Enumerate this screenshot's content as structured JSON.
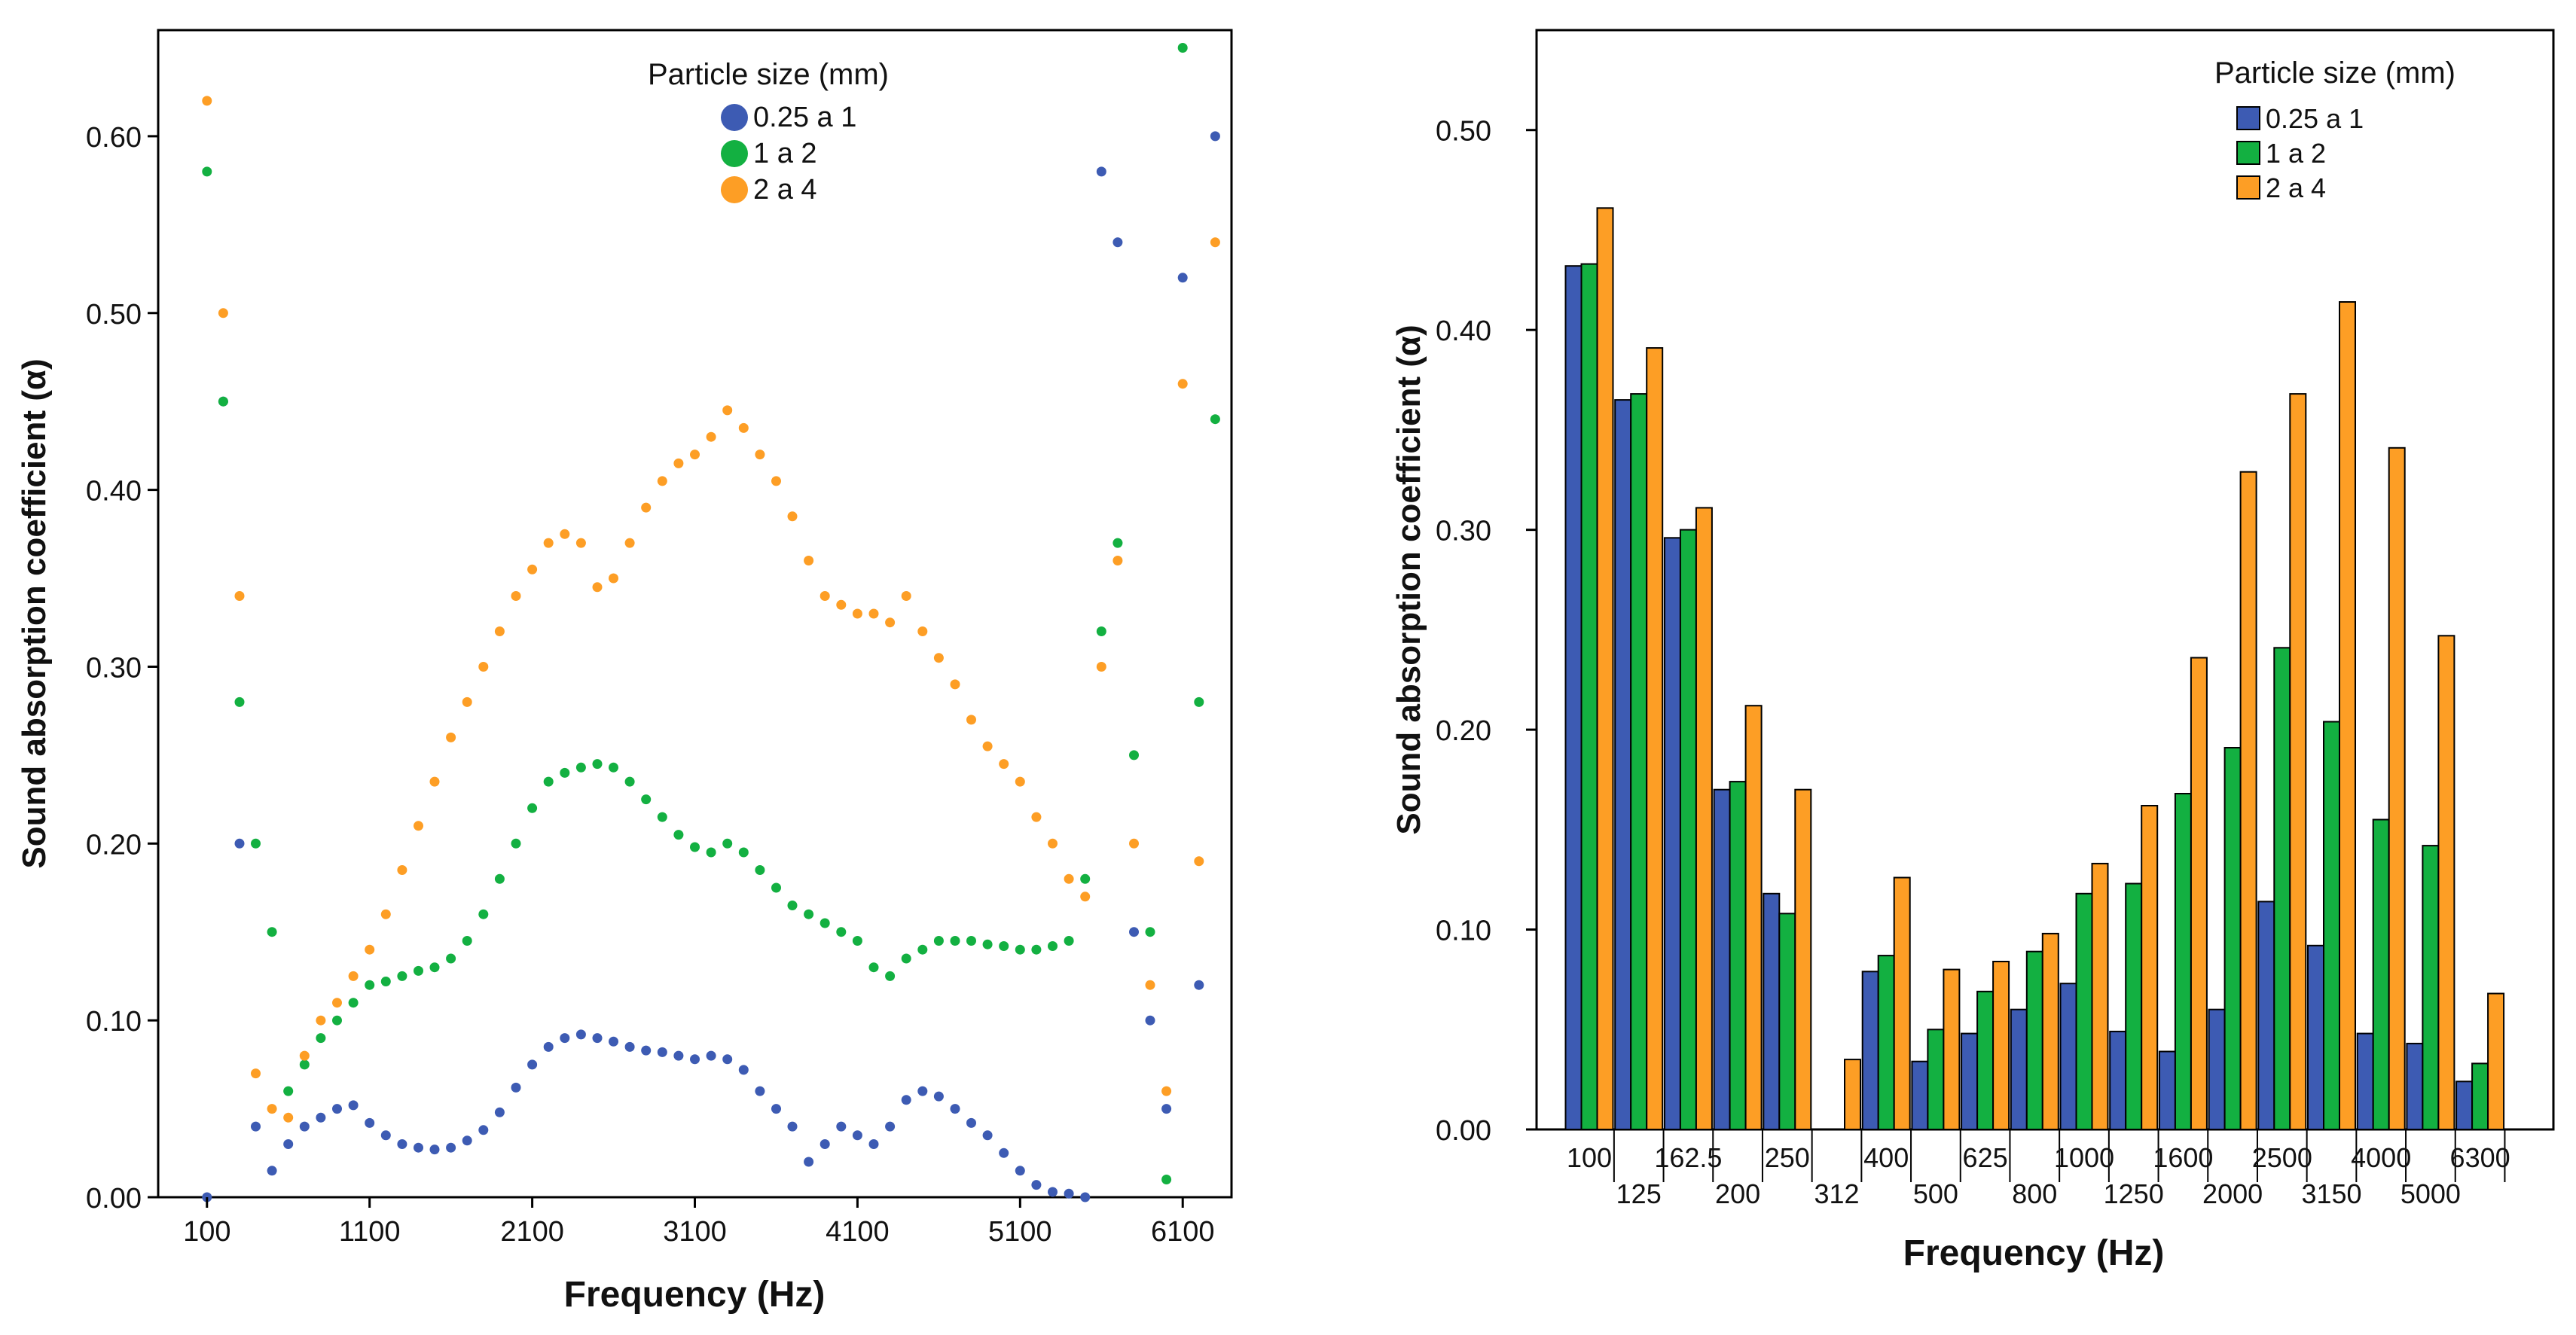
{
  "colors": {
    "blue": "#3d5bb3",
    "green": "#13b041",
    "orange": "#fd9e25",
    "axis": "#000000",
    "text": "#111111"
  },
  "chart_data": [
    {
      "type": "scatter",
      "title": "",
      "xlabel": "Frequency (Hz)",
      "ylabel": "Sound absorption coefficient (α)",
      "xlim": [
        -200,
        6400
      ],
      "ylim": [
        0,
        0.66
      ],
      "xticks": [
        100,
        1100,
        2100,
        3100,
        4100,
        5100,
        6100
      ],
      "xtick_labels": [
        "100",
        "1100",
        "2100",
        "3100",
        "4100",
        "5100",
        "6100"
      ],
      "yticks": [
        0,
        0.1,
        0.2,
        0.3,
        0.4,
        0.5,
        0.6
      ],
      "ytick_labels": [
        "0.00",
        "0.10",
        "0.20",
        "0.30",
        "0.40",
        "0.50",
        "0.60"
      ],
      "legend_title": "Particle size (mm)",
      "legend_position": "top-center",
      "series": [
        {
          "name": "0.25 a 1",
          "color": "blue",
          "x": [
            100,
            200,
            300,
            400,
            500,
            600,
            700,
            800,
            900,
            1000,
            1100,
            1200,
            1300,
            1400,
            1500,
            1600,
            1700,
            1800,
            1900,
            2000,
            2100,
            2200,
            2300,
            2400,
            2500,
            2600,
            2700,
            2800,
            2900,
            3000,
            3100,
            3200,
            3300,
            3400,
            3500,
            3600,
            3700,
            3800,
            3900,
            4000,
            4100,
            4200,
            4300,
            4400,
            4500,
            4600,
            4700,
            4800,
            4900,
            5000,
            5100,
            5200,
            5300,
            5400,
            5500,
            5600,
            5700,
            5800,
            5900,
            6000,
            6100,
            6200,
            6300
          ],
          "y": [
            0.0,
            0.45,
            0.2,
            0.04,
            0.015,
            0.03,
            0.04,
            0.045,
            0.05,
            0.052,
            0.042,
            0.035,
            0.03,
            0.028,
            0.027,
            0.028,
            0.032,
            0.038,
            0.048,
            0.062,
            0.075,
            0.085,
            0.09,
            0.092,
            0.09,
            0.088,
            0.085,
            0.083,
            0.082,
            0.08,
            0.078,
            0.08,
            0.078,
            0.072,
            0.06,
            0.05,
            0.04,
            0.02,
            0.03,
            0.04,
            0.035,
            0.03,
            0.04,
            0.055,
            0.06,
            0.057,
            0.05,
            0.042,
            0.035,
            0.025,
            0.015,
            0.007,
            0.003,
            0.002,
            0.0,
            0.58,
            0.54,
            0.15,
            0.1,
            0.05,
            0.52,
            0.12,
            0.6
          ]
        },
        {
          "name": "1 a 2",
          "color": "green",
          "x": [
            100,
            200,
            300,
            400,
            500,
            600,
            700,
            800,
            900,
            1000,
            1100,
            1200,
            1300,
            1400,
            1500,
            1600,
            1700,
            1800,
            1900,
            2000,
            2100,
            2200,
            2300,
            2400,
            2500,
            2600,
            2700,
            2800,
            2900,
            3000,
            3100,
            3200,
            3300,
            3400,
            3500,
            3600,
            3700,
            3800,
            3900,
            4000,
            4100,
            4200,
            4300,
            4400,
            4500,
            4600,
            4700,
            4800,
            4900,
            5000,
            5100,
            5200,
            5300,
            5400,
            5500,
            5600,
            5700,
            5800,
            5900,
            6000,
            6100,
            6200,
            6300
          ],
          "y": [
            0.58,
            0.45,
            0.28,
            0.2,
            0.15,
            0.06,
            0.075,
            0.09,
            0.1,
            0.11,
            0.12,
            0.122,
            0.125,
            0.128,
            0.13,
            0.135,
            0.145,
            0.16,
            0.18,
            0.2,
            0.22,
            0.235,
            0.24,
            0.243,
            0.245,
            0.243,
            0.235,
            0.225,
            0.215,
            0.205,
            0.198,
            0.195,
            0.2,
            0.195,
            0.185,
            0.175,
            0.165,
            0.16,
            0.155,
            0.15,
            0.145,
            0.13,
            0.125,
            0.135,
            0.14,
            0.145,
            0.145,
            0.145,
            0.143,
            0.142,
            0.14,
            0.14,
            0.142,
            0.145,
            0.18,
            0.32,
            0.37,
            0.25,
            0.15,
            0.01,
            0.65,
            0.28,
            0.44
          ]
        },
        {
          "name": "2 a 4",
          "color": "orange",
          "x": [
            100,
            200,
            300,
            400,
            500,
            600,
            700,
            800,
            900,
            1000,
            1100,
            1200,
            1300,
            1400,
            1500,
            1600,
            1700,
            1800,
            1900,
            2000,
            2100,
            2200,
            2300,
            2400,
            2500,
            2600,
            2700,
            2800,
            2900,
            3000,
            3100,
            3200,
            3300,
            3400,
            3500,
            3600,
            3700,
            3800,
            3900,
            4000,
            4100,
            4200,
            4300,
            4400,
            4500,
            4600,
            4700,
            4800,
            4900,
            5000,
            5100,
            5200,
            5300,
            5400,
            5500,
            5600,
            5700,
            5800,
            5900,
            6000,
            6100,
            6200,
            6300
          ],
          "y": [
            0.62,
            0.5,
            0.34,
            0.07,
            0.05,
            0.045,
            0.08,
            0.1,
            0.11,
            0.125,
            0.14,
            0.16,
            0.185,
            0.21,
            0.235,
            0.26,
            0.28,
            0.3,
            0.32,
            0.34,
            0.355,
            0.37,
            0.375,
            0.37,
            0.345,
            0.35,
            0.37,
            0.39,
            0.405,
            0.415,
            0.42,
            0.43,
            0.445,
            0.435,
            0.42,
            0.405,
            0.385,
            0.36,
            0.34,
            0.335,
            0.33,
            0.33,
            0.325,
            0.34,
            0.32,
            0.305,
            0.29,
            0.27,
            0.255,
            0.245,
            0.235,
            0.215,
            0.2,
            0.18,
            0.17,
            0.3,
            0.36,
            0.2,
            0.12,
            0.06,
            0.46,
            0.19,
            0.54
          ]
        }
      ]
    },
    {
      "type": "bar",
      "title": "",
      "xlabel": "Frequency (Hz)",
      "ylabel": "Sound absorption coefficient (α)",
      "ylim": [
        0,
        0.55
      ],
      "yticks": [
        0,
        0.1,
        0.2,
        0.3,
        0.4,
        0.5
      ],
      "ytick_labels": [
        "0.00",
        "0.10",
        "0.20",
        "0.30",
        "0.40",
        "0.50"
      ],
      "categories": [
        "100",
        "125",
        "162.5",
        "200",
        "250",
        "312",
        "400",
        "500",
        "625",
        "800",
        "1000",
        "1250",
        "1600",
        "2000",
        "2500",
        "3150",
        "4000",
        "5000",
        "6300"
      ],
      "legend_title": "Particle size (mm)",
      "legend_position": "top-right",
      "series": [
        {
          "name": "0.25 a 1",
          "color": "blue",
          "values": [
            0.432,
            0.365,
            0.296,
            0.17,
            0.118,
            0.0,
            0.079,
            0.034,
            0.048,
            0.06,
            0.073,
            0.049,
            0.039,
            0.06,
            0.114,
            0.092,
            0.048,
            0.043,
            0.024
          ]
        },
        {
          "name": "1 a 2",
          "color": "green",
          "values": [
            0.433,
            0.368,
            0.3,
            0.174,
            0.108,
            0.0,
            0.087,
            0.05,
            0.069,
            0.089,
            0.118,
            0.123,
            0.168,
            0.191,
            0.241,
            0.204,
            0.155,
            0.142,
            0.033
          ]
        },
        {
          "name": "2 a 4",
          "color": "orange",
          "values": [
            0.461,
            0.391,
            0.311,
            0.212,
            0.17,
            0.035,
            0.126,
            0.08,
            0.084,
            0.098,
            0.133,
            0.162,
            0.236,
            0.329,
            0.368,
            0.414,
            0.341,
            0.247,
            0.068
          ]
        }
      ]
    }
  ]
}
